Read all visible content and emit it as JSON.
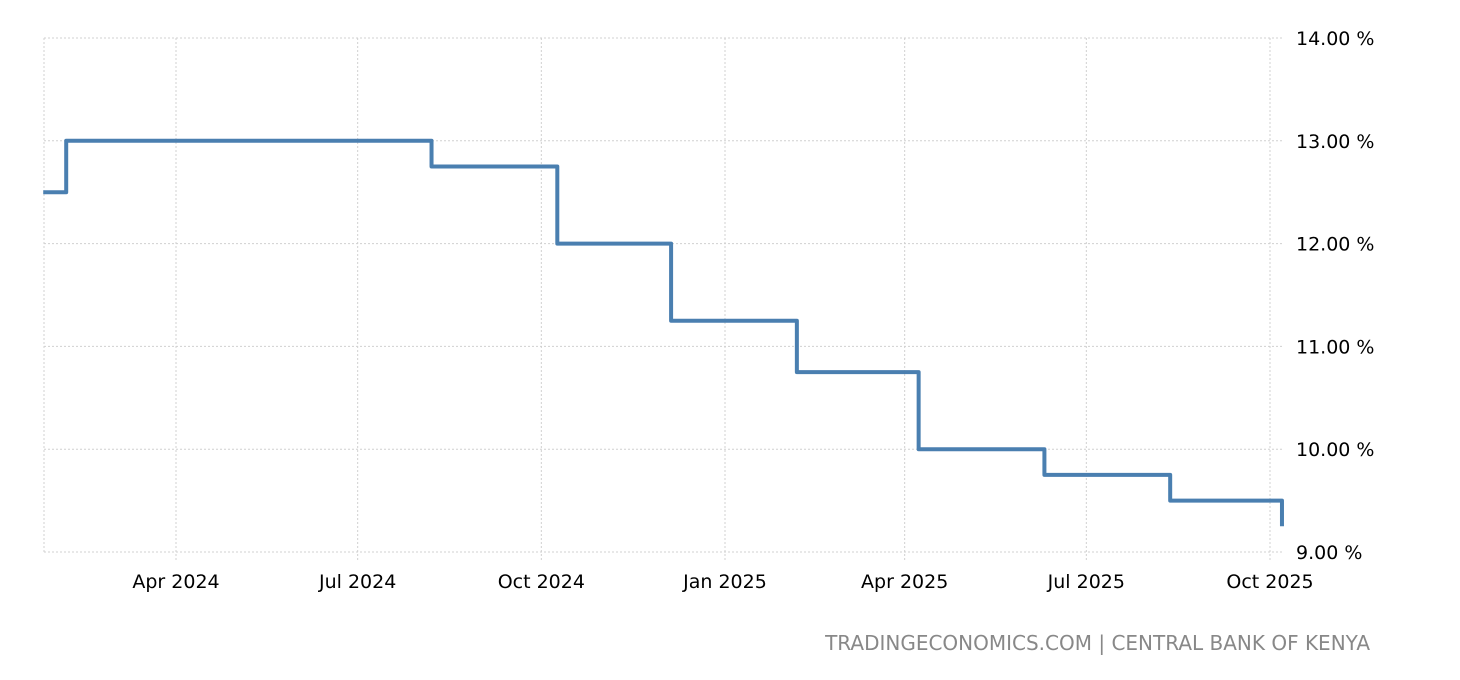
{
  "chart_data": {
    "type": "line",
    "step": true,
    "title": "",
    "xlabel": "",
    "ylabel": "",
    "ylim": [
      9,
      14
    ],
    "y_ticks": [
      "14.00 %",
      "13.00 %",
      "12.00 %",
      "11.00 %",
      "10.00 %",
      "9.00 %"
    ],
    "y_tick_values": [
      14,
      13,
      12,
      11,
      10,
      9
    ],
    "x_ticks": [
      "Apr 2024",
      "Jul 2024",
      "Oct 2024",
      "Jan 2025",
      "Apr 2025",
      "Jul 2025",
      "Oct 2025"
    ],
    "x_tick_dates": [
      "2024-04-01",
      "2024-07-01",
      "2024-10-01",
      "2025-01-01",
      "2025-04-01",
      "2025-07-01",
      "2025-10-01"
    ],
    "grid": true,
    "line_color": "#4a7fb0",
    "series": [
      {
        "x": [
          "2024-01-31",
          "2024-02-06",
          "2024-08-07",
          "2024-10-09",
          "2024-12-05",
          "2025-02-06",
          "2025-04-08",
          "2025-06-10",
          "2025-08-12",
          "2025-10-07"
        ],
        "y": [
          12.5,
          13.0,
          12.75,
          12.0,
          11.25,
          10.75,
          10.0,
          9.75,
          9.5,
          9.25
        ]
      }
    ]
  },
  "source": "TRADINGECONOMICS.COM | CENTRAL BANK OF KENYA"
}
